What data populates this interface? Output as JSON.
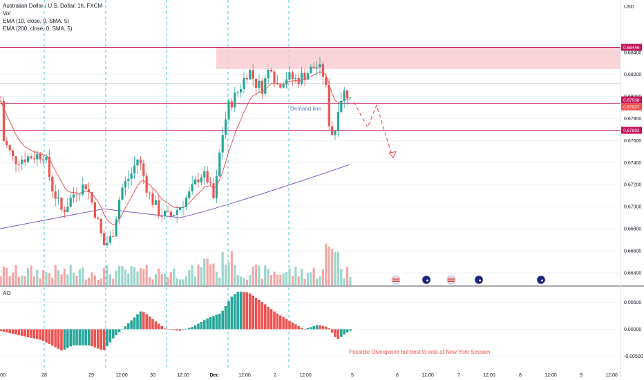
{
  "legend": {
    "title": "Australian Dollar / U.S. Dollar, 1h, FXCM",
    "vol": "Vol",
    "ema10": "EMA (10, close, 0, SMA, 5)",
    "ema200": "EMA (200, close, 0, SMA, 5)",
    "ao": "AO"
  },
  "currency": "USD",
  "colors": {
    "up": "#26a69a",
    "down": "#ef5350",
    "vol_up": "#9bd6cc",
    "vol_down": "#f5a7a6",
    "ema10": "#ef5350",
    "ema200": "#7e57c2",
    "level": "#c2185b",
    "zone": "#f8c9cf",
    "session": "#40c4d8",
    "annotation": "#ef5350",
    "demand_text": "#5b7fd4"
  },
  "chart_data": [
    {
      "type": "candlestick",
      "ylim": [
        0.6628,
        0.6875
      ],
      "y_ticks": [
        "0.68400",
        "0.68200",
        "0.68000",
        "0.67800",
        "0.67600",
        "0.67400",
        "0.67200",
        "0.67000",
        "0.66800",
        "0.66600",
        "0.66400"
      ],
      "x_ticks": [
        "00",
        "28",
        "29",
        "12:00",
        "30",
        "12:00",
        "Dec",
        "12:00",
        "2",
        "12:00",
        "5",
        "6",
        "12:00",
        "7",
        "12:00",
        "8",
        "12:00",
        "9",
        "12:00"
      ],
      "price_labels": [
        "0.68446",
        "0.67938",
        "0.67937",
        "0.67693"
      ],
      "levels": [
        0.68446,
        0.67938,
        0.67693,
        0.6812
      ],
      "supply_zone": [
        0.68446,
        0.6825
      ],
      "annotations": {
        "demand_line": "Demand line"
      },
      "forecast_path": [
        0.6795,
        0.6772,
        0.6792,
        0.6745
      ],
      "events": [
        "us-flag-icon",
        "au-flag-icon",
        "us-flag-icon",
        "au-flag-icon",
        "au-flag-icon"
      ]
    },
    {
      "type": "bar",
      "name": "AO",
      "ylim": [
        -0.0075,
        0.0075
      ],
      "y_ticks": [
        "0.00500",
        "0.00000",
        "-0.00500"
      ],
      "annotation": "Possible Divergence but best to wait at New York Session"
    }
  ]
}
